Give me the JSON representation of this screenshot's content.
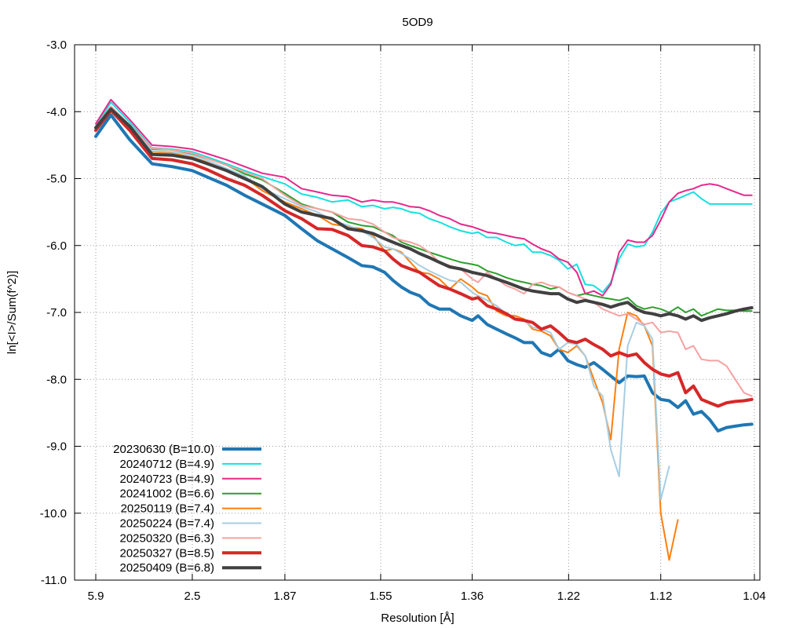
{
  "chart_data": {
    "type": "line",
    "title": "5OD9",
    "xlabel": "Resolution [Å]",
    "ylabel": "ln[<I>/Sum(f^2)]",
    "ylim": [
      -11.0,
      -3.0
    ],
    "y_ticks": [
      "-3.0",
      "-4.0",
      "-5.0",
      "-6.0",
      "-7.0",
      "-8.0",
      "-9.0",
      "-10.0",
      "-11.0"
    ],
    "x_ticks": [
      "5.9",
      "2.5",
      "1.87",
      "1.55",
      "1.36",
      "1.22",
      "1.12",
      "1.04"
    ],
    "x_axis_scale": "1/d^2",
    "x": [
      5.9,
      4.5,
      3.65,
      3.08,
      2.75,
      2.5,
      2.35,
      2.2,
      2.08,
      1.98,
      1.87,
      1.8,
      1.74,
      1.69,
      1.64,
      1.6,
      1.57,
      1.54,
      1.52,
      1.5,
      1.48,
      1.46,
      1.44,
      1.42,
      1.4,
      1.38,
      1.36,
      1.35,
      1.335,
      1.32,
      1.305,
      1.292,
      1.279,
      1.267,
      1.255,
      1.243,
      1.232,
      1.221,
      1.21,
      1.2,
      1.19,
      1.18,
      1.171,
      1.162,
      1.153,
      1.144,
      1.136,
      1.128,
      1.12,
      1.112,
      1.104,
      1.097,
      1.09,
      1.083,
      1.076,
      1.069,
      1.062,
      1.055,
      1.048,
      1.042
    ],
    "grid": true,
    "legend_position": "bottom-left",
    "series": [
      {
        "name": "20230630 (B=10.0)",
        "color": "#1f77b4",
        "width": 4,
        "values": [
          -4.37,
          -4.05,
          -4.42,
          -4.78,
          -4.82,
          -4.88,
          -4.98,
          -5.1,
          -5.25,
          -5.38,
          -5.55,
          -5.75,
          -5.93,
          -6.05,
          -6.18,
          -6.3,
          -6.32,
          -6.4,
          -6.52,
          -6.62,
          -6.7,
          -6.75,
          -6.88,
          -6.95,
          -6.95,
          -7.05,
          -7.12,
          -7.05,
          -7.18,
          -7.25,
          -7.32,
          -7.38,
          -7.45,
          -7.45,
          -7.6,
          -7.65,
          -7.55,
          -7.72,
          -7.78,
          -7.82,
          -7.75,
          -7.85,
          -7.95,
          -8.05,
          -7.95,
          -7.96,
          -7.95,
          -8.2,
          -8.3,
          -8.32,
          -8.42,
          -8.32,
          -8.52,
          -8.48,
          -8.6,
          -8.77,
          -8.72,
          -8.7,
          -8.68,
          -8.67
        ]
      },
      {
        "name": "20240712 (B=4.9)",
        "color": "#17e0df",
        "width": 2,
        "values": [
          -4.22,
          -3.86,
          -4.16,
          -4.54,
          -4.56,
          -4.6,
          -4.68,
          -4.78,
          -4.88,
          -4.97,
          -5.08,
          -5.23,
          -5.28,
          -5.35,
          -5.32,
          -5.42,
          -5.4,
          -5.45,
          -5.43,
          -5.45,
          -5.5,
          -5.52,
          -5.6,
          -5.65,
          -5.72,
          -5.78,
          -5.82,
          -5.8,
          -5.88,
          -5.88,
          -5.95,
          -6.0,
          -5.98,
          -6.1,
          -6.1,
          -6.15,
          -6.22,
          -6.35,
          -6.28,
          -6.58,
          -6.6,
          -6.7,
          -6.55,
          -6.2,
          -5.98,
          -6.02,
          -6.0,
          -5.8,
          -5.52,
          -5.35,
          -5.3,
          -5.25,
          -5.2,
          -5.3,
          -5.38,
          -5.38,
          -5.38,
          -5.38,
          -5.38,
          -5.38
        ]
      },
      {
        "name": "20240723 (B=4.9)",
        "color": "#e6288c",
        "width": 2,
        "values": [
          -4.18,
          -3.82,
          -4.12,
          -4.5,
          -4.52,
          -4.56,
          -4.63,
          -4.72,
          -4.82,
          -4.92,
          -4.98,
          -5.15,
          -5.2,
          -5.25,
          -5.27,
          -5.35,
          -5.32,
          -5.35,
          -5.35,
          -5.38,
          -5.42,
          -5.43,
          -5.48,
          -5.55,
          -5.6,
          -5.68,
          -5.72,
          -5.75,
          -5.8,
          -5.82,
          -5.85,
          -5.88,
          -5.9,
          -5.98,
          -6.05,
          -6.1,
          -6.2,
          -6.25,
          -6.4,
          -6.72,
          -6.68,
          -6.75,
          -6.58,
          -6.1,
          -5.92,
          -5.95,
          -5.95,
          -5.85,
          -5.62,
          -5.35,
          -5.22,
          -5.18,
          -5.15,
          -5.1,
          -5.08,
          -5.1,
          -5.15,
          -5.2,
          -5.25,
          -5.25
        ]
      },
      {
        "name": "20241002 (B=6.6)",
        "color": "#2ca02c",
        "width": 2,
        "values": [
          -4.24,
          -3.94,
          -4.2,
          -4.56,
          -4.57,
          -4.63,
          -4.7,
          -4.8,
          -4.93,
          -5.02,
          -5.22,
          -5.38,
          -5.45,
          -5.5,
          -5.65,
          -5.7,
          -5.72,
          -5.8,
          -5.85,
          -5.95,
          -6.0,
          -6.05,
          -6.1,
          -6.15,
          -6.2,
          -6.25,
          -6.28,
          -6.3,
          -6.38,
          -6.42,
          -6.48,
          -6.52,
          -6.55,
          -6.58,
          -6.6,
          -6.65,
          -6.62,
          -6.7,
          -6.75,
          -6.72,
          -6.75,
          -6.78,
          -6.8,
          -6.82,
          -6.78,
          -6.9,
          -6.95,
          -6.92,
          -6.95,
          -7.0,
          -6.92,
          -7.0,
          -6.95,
          -7.05,
          -7.0,
          -6.95,
          -6.97,
          -6.97,
          -6.98,
          -6.98
        ]
      },
      {
        "name": "20250119 (B=7.4)",
        "color": "#ff7f0e",
        "width": 2,
        "values": [
          -4.26,
          -3.96,
          -4.22,
          -4.6,
          -4.62,
          -4.68,
          -4.76,
          -4.88,
          -4.98,
          -5.18,
          -5.35,
          -5.45,
          -5.55,
          -5.68,
          -5.72,
          -5.75,
          -5.85,
          -6.08,
          -6.05,
          -6.1,
          -6.25,
          -6.4,
          -6.42,
          -6.5,
          -6.65,
          -6.5,
          -6.62,
          -6.7,
          -6.75,
          -6.98,
          -7.05,
          -7.05,
          -7.1,
          -7.25,
          -7.28,
          -7.35,
          -7.55,
          -7.6,
          -7.5,
          -7.65,
          -8.0,
          -8.35,
          -8.9,
          -7.55,
          -7.0,
          -7.05,
          -7.2,
          -7.5,
          -10.0,
          -10.7,
          -10.1,
          null,
          null,
          null,
          null,
          null,
          null,
          null,
          null,
          null
        ]
      },
      {
        "name": "20250224 (B=7.4)",
        "color": "#a6cee3",
        "width": 2,
        "values": [
          -4.25,
          -3.95,
          -4.21,
          -4.59,
          -4.6,
          -4.65,
          -4.73,
          -4.85,
          -4.96,
          -5.15,
          -5.3,
          -5.42,
          -5.5,
          -5.62,
          -5.7,
          -5.78,
          -5.88,
          -6.02,
          -6.05,
          -6.12,
          -6.2,
          -6.3,
          -6.38,
          -6.45,
          -6.52,
          -6.55,
          -6.7,
          -6.75,
          -6.82,
          -6.9,
          -7.02,
          -7.1,
          -7.12,
          -7.22,
          -7.25,
          -7.3,
          -7.55,
          -7.45,
          -7.48,
          -7.65,
          -8.1,
          -8.25,
          -9.05,
          -9.45,
          -7.5,
          -7.15,
          -7.2,
          -7.4,
          -9.8,
          -9.3,
          null,
          null,
          null,
          null,
          null,
          null,
          null,
          null,
          null,
          null
        ]
      },
      {
        "name": "20250320 (B=6.3)",
        "color": "#f7a1a1",
        "width": 2,
        "values": [
          -4.22,
          -3.92,
          -4.2,
          -4.55,
          -4.57,
          -4.62,
          -4.7,
          -4.8,
          -4.9,
          -5.0,
          -5.25,
          -5.4,
          -5.45,
          -5.5,
          -5.6,
          -5.62,
          -5.68,
          -5.8,
          -5.88,
          -5.92,
          -5.95,
          -6.0,
          -6.1,
          -6.25,
          -6.3,
          -6.35,
          -6.5,
          -6.55,
          -6.4,
          -6.5,
          -6.6,
          -6.65,
          -6.72,
          -6.58,
          -6.55,
          -6.6,
          -6.62,
          -6.7,
          -6.75,
          -6.8,
          -6.85,
          -6.95,
          -7.0,
          -7.05,
          -7.02,
          -7.1,
          -7.18,
          -7.15,
          -7.3,
          -7.28,
          -7.3,
          -7.55,
          -7.5,
          -7.7,
          -7.72,
          -7.72,
          -7.8,
          -8.0,
          -8.2,
          -8.25
        ]
      },
      {
        "name": "20250327 (B=8.5)",
        "color": "#d62728",
        "width": 4,
        "values": [
          -4.28,
          -3.98,
          -4.28,
          -4.7,
          -4.72,
          -4.78,
          -4.87,
          -5.0,
          -5.1,
          -5.25,
          -5.48,
          -5.6,
          -5.75,
          -5.76,
          -5.85,
          -6.0,
          -6.02,
          -6.08,
          -6.2,
          -6.3,
          -6.35,
          -6.4,
          -6.5,
          -6.6,
          -6.65,
          -6.72,
          -6.8,
          -6.78,
          -6.9,
          -6.95,
          -7.02,
          -7.1,
          -7.12,
          -7.15,
          -7.25,
          -7.2,
          -7.3,
          -7.42,
          -7.45,
          -7.4,
          -7.48,
          -7.55,
          -7.65,
          -7.6,
          -7.65,
          -7.62,
          -7.75,
          -7.85,
          -7.92,
          -7.95,
          -7.9,
          -8.2,
          -8.1,
          -8.3,
          -8.35,
          -8.4,
          -8.35,
          -8.33,
          -8.32,
          -8.3
        ]
      },
      {
        "name": "20250409 (B=6.8)",
        "color": "#404040",
        "width": 4,
        "values": [
          -4.24,
          -3.96,
          -4.22,
          -4.64,
          -4.65,
          -4.7,
          -4.78,
          -4.88,
          -5.0,
          -5.12,
          -5.38,
          -5.5,
          -5.55,
          -5.6,
          -5.75,
          -5.78,
          -5.82,
          -5.9,
          -5.95,
          -6.0,
          -6.05,
          -6.12,
          -6.18,
          -6.25,
          -6.32,
          -6.35,
          -6.4,
          -6.42,
          -6.45,
          -6.5,
          -6.55,
          -6.6,
          -6.65,
          -6.68,
          -6.7,
          -6.72,
          -6.72,
          -6.8,
          -6.85,
          -6.82,
          -6.85,
          -6.88,
          -6.92,
          -6.88,
          -6.85,
          -6.95,
          -7.0,
          -7.02,
          -7.05,
          -7.02,
          -7.05,
          -7.1,
          -7.05,
          -7.12,
          -7.08,
          -7.05,
          -7.02,
          -6.98,
          -6.95,
          -6.93
        ]
      }
    ]
  }
}
